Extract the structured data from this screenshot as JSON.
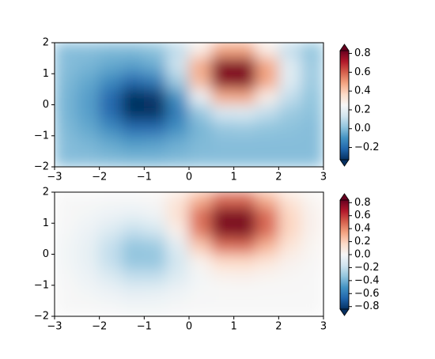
{
  "chart_data": [
    {
      "type": "heatmap",
      "colormap": "RdBu_r",
      "x": [
        -2.75,
        -2.25,
        -1.75,
        -1.25,
        -0.75,
        -0.25,
        0.25,
        0.75,
        1.25,
        1.75,
        2.25,
        2.75
      ],
      "y": [
        1.75,
        1.25,
        0.75,
        0.25,
        -0.25,
        -0.75,
        -1.25,
        -1.75
      ],
      "z": [
        [
          0,
          0,
          -0.01,
          -0.01,
          0.01,
          0.1,
          0.29,
          0.48,
          0.48,
          0.29,
          0.11,
          0.02
        ],
        [
          0,
          -0.02,
          -0.05,
          -0.07,
          -0.04,
          0.13,
          0.47,
          0.79,
          0.79,
          0.48,
          0.18,
          0.04
        ],
        [
          -0.01,
          -0.05,
          -0.12,
          -0.2,
          -0.16,
          0.05,
          0.44,
          0.78,
          0.79,
          0.48,
          0.18,
          0.04
        ],
        [
          -0.02,
          -0.07,
          -0.2,
          -0.33,
          -0.31,
          -0.1,
          0.22,
          0.47,
          0.48,
          0.29,
          0.11,
          0.02
        ],
        [
          -0.02,
          -0.07,
          -0.2,
          -0.33,
          -0.33,
          -0.16,
          0.03,
          0.16,
          0.17,
          0.11,
          0.04,
          0.01
        ],
        [
          -0.01,
          -0.05,
          -0.12,
          -0.2,
          -0.2,
          -0.11,
          -0.02,
          0.03,
          0.04,
          0.02,
          0.01,
          0
        ],
        [
          0,
          -0.02,
          -0.05,
          -0.08,
          -0.07,
          -0.04,
          -0.01,
          0,
          0,
          0,
          0,
          0
        ],
        [
          0,
          0,
          -0.01,
          -0.02,
          -0.02,
          -0.01,
          0,
          0,
          0,
          0,
          0,
          0
        ]
      ],
      "xlim": [
        -3,
        3
      ],
      "ylim": [
        -2,
        2
      ],
      "xticks": [
        {
          "value": -3,
          "label": "−3"
        },
        {
          "value": -2,
          "label": "−2"
        },
        {
          "value": -1,
          "label": "−1"
        },
        0,
        1,
        2,
        3
      ],
      "yticks": [
        {
          "value": -2,
          "label": "−2"
        },
        {
          "value": -1,
          "label": "−1"
        },
        0,
        1,
        2
      ],
      "clim": [
        -0.33,
        0.83
      ],
      "colorbar_extend": "both",
      "cticks": [
        {
          "value": -0.2,
          "label": "−0.2"
        },
        {
          "value": 0,
          "label": "0.0"
        },
        0.2,
        0.4,
        0.6,
        0.8
      ]
    },
    {
      "type": "heatmap",
      "colormap": "RdBu_r",
      "x": [
        -2.75,
        -2.25,
        -1.75,
        -1.25,
        -0.75,
        -0.25,
        0.25,
        0.75,
        1.25,
        1.75,
        2.25,
        2.75
      ],
      "y": [
        1.75,
        1.25,
        0.75,
        0.25,
        -0.25,
        -0.75,
        -1.25,
        -1.75
      ],
      "z": [
        [
          0,
          0,
          -0.01,
          -0.01,
          0.01,
          0.1,
          0.29,
          0.48,
          0.48,
          0.29,
          0.11,
          0.02
        ],
        [
          0,
          -0.02,
          -0.05,
          -0.07,
          -0.04,
          0.13,
          0.47,
          0.79,
          0.79,
          0.48,
          0.18,
          0.04
        ],
        [
          -0.01,
          -0.05,
          -0.12,
          -0.2,
          -0.16,
          0.05,
          0.44,
          0.78,
          0.79,
          0.48,
          0.18,
          0.04
        ],
        [
          -0.02,
          -0.07,
          -0.2,
          -0.33,
          -0.31,
          -0.1,
          0.22,
          0.47,
          0.48,
          0.29,
          0.11,
          0.02
        ],
        [
          -0.02,
          -0.07,
          -0.2,
          -0.33,
          -0.33,
          -0.16,
          0.03,
          0.16,
          0.17,
          0.11,
          0.04,
          0.01
        ],
        [
          -0.01,
          -0.05,
          -0.12,
          -0.2,
          -0.2,
          -0.11,
          -0.02,
          0.03,
          0.04,
          0.02,
          0.01,
          0
        ],
        [
          0,
          -0.02,
          -0.05,
          -0.08,
          -0.07,
          -0.04,
          -0.01,
          0,
          0,
          0,
          0,
          0
        ],
        [
          0,
          0,
          -0.01,
          -0.02,
          -0.02,
          -0.01,
          0,
          0,
          0,
          0,
          0,
          0
        ]
      ],
      "xlim": [
        -3,
        3
      ],
      "ylim": [
        -2,
        2
      ],
      "xticks": [
        {
          "value": -3,
          "label": "−3"
        },
        {
          "value": -2,
          "label": "−2"
        },
        {
          "value": -1,
          "label": "−1"
        },
        0,
        1,
        2,
        3
      ],
      "yticks": [
        {
          "value": -2,
          "label": "−2"
        },
        {
          "value": -1,
          "label": "−1"
        },
        0,
        1,
        2
      ],
      "clim": [
        -0.84,
        0.84
      ],
      "colorbar_extend": "both",
      "cticks": [
        {
          "value": -0.8,
          "label": "−0.8"
        },
        {
          "value": -0.6,
          "label": "−0.6"
        },
        {
          "value": -0.4,
          "label": "−0.4"
        },
        {
          "value": -0.2,
          "label": "−0.2"
        },
        {
          "value": 0,
          "label": "0.0"
        },
        0.2,
        0.4,
        0.6,
        0.8
      ]
    }
  ]
}
